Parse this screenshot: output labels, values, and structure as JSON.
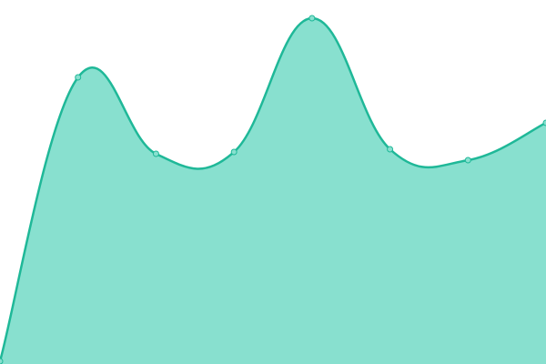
{
  "chart_data": {
    "type": "area",
    "categories": [
      null,
      null,
      null,
      null,
      null,
      null,
      null,
      null
    ],
    "values": [
      3,
      315,
      231,
      233,
      380,
      236,
      224,
      265
    ],
    "color": "#1fb898",
    "fill": "#88e0cf",
    "ylim": [
      0,
      400
    ]
  }
}
